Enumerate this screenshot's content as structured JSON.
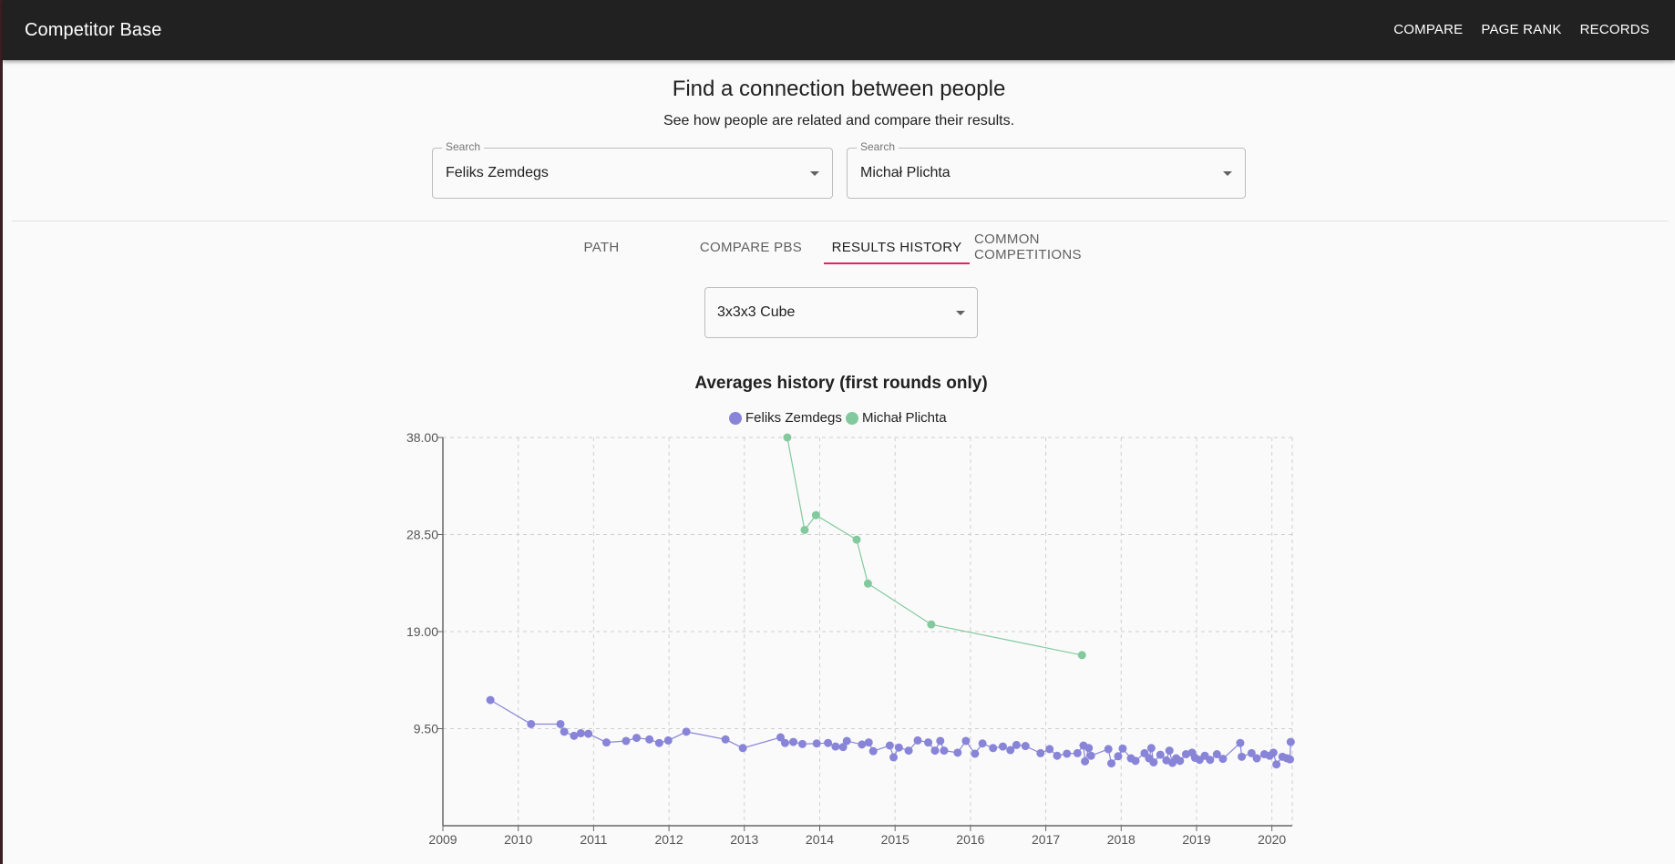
{
  "app": {
    "title": "Competitor Base",
    "nav": [
      "COMPARE",
      "PAGE RANK",
      "RECORDS"
    ]
  },
  "header": {
    "title": "Find a connection between people",
    "subtitle": "See how people are related and compare their results."
  },
  "search": [
    {
      "label": "Search",
      "value": "Feliks Zemdegs"
    },
    {
      "label": "Search",
      "value": "Michał Plichta"
    }
  ],
  "tabs": [
    {
      "label": "PATH",
      "active": false
    },
    {
      "label": "COMPARE PBS",
      "active": false
    },
    {
      "label": "RESULTS HISTORY",
      "active": true
    },
    {
      "label": "COMMON COMPETITIONS",
      "active": false
    }
  ],
  "event_select": {
    "value": "3x3x3 Cube"
  },
  "colors": {
    "accent": "#e91e63",
    "appbar": "#212121",
    "series1": "#8884d8",
    "series2": "#82ca9d"
  },
  "chart_data": {
    "type": "line",
    "title": "Averages history (first rounds only)",
    "legend": "top-center",
    "grid": true,
    "xlabel": "",
    "ylabel": "",
    "xlim": [
      2009,
      2020.27
    ],
    "ylim": [
      0,
      38
    ],
    "x_ticks": [
      "2009",
      "2010",
      "2011",
      "2012",
      "2013",
      "2014",
      "2015",
      "2016",
      "2017",
      "2018",
      "2019",
      "2020"
    ],
    "y_ticks": [
      "9.50",
      "19.00",
      "28.50",
      "38.00"
    ],
    "series": [
      {
        "name": "Feliks Zemdegs",
        "color": "#8884d8",
        "points": [
          [
            2009.63,
            12.3
          ],
          [
            2010.17,
            9.95
          ],
          [
            2010.56,
            9.95
          ],
          [
            2010.61,
            9.2
          ],
          [
            2010.74,
            8.8
          ],
          [
            2010.83,
            9.05
          ],
          [
            2010.93,
            9.0
          ],
          [
            2011.17,
            8.15
          ],
          [
            2011.43,
            8.3
          ],
          [
            2011.57,
            8.6
          ],
          [
            2011.74,
            8.45
          ],
          [
            2011.87,
            8.1
          ],
          [
            2011.99,
            8.35
          ],
          [
            2012.23,
            9.2
          ],
          [
            2012.75,
            8.45
          ],
          [
            2012.98,
            7.6
          ],
          [
            2013.48,
            8.65
          ],
          [
            2013.54,
            8.1
          ],
          [
            2013.65,
            8.2
          ],
          [
            2013.77,
            8.0
          ],
          [
            2013.96,
            8.05
          ],
          [
            2014.11,
            8.1
          ],
          [
            2014.21,
            7.75
          ],
          [
            2014.31,
            7.7
          ],
          [
            2014.36,
            8.3
          ],
          [
            2014.56,
            7.95
          ],
          [
            2014.65,
            8.15
          ],
          [
            2014.71,
            7.3
          ],
          [
            2014.93,
            7.85
          ],
          [
            2014.98,
            6.7
          ],
          [
            2015.05,
            7.65
          ],
          [
            2015.18,
            7.35
          ],
          [
            2015.3,
            8.35
          ],
          [
            2015.44,
            8.15
          ],
          [
            2015.53,
            7.35
          ],
          [
            2015.6,
            8.3
          ],
          [
            2015.65,
            7.35
          ],
          [
            2015.83,
            7.15
          ],
          [
            2015.94,
            8.3
          ],
          [
            2016.06,
            7.05
          ],
          [
            2016.16,
            8.05
          ],
          [
            2016.3,
            7.6
          ],
          [
            2016.43,
            7.75
          ],
          [
            2016.53,
            7.4
          ],
          [
            2016.61,
            7.9
          ],
          [
            2016.73,
            7.8
          ],
          [
            2016.93,
            7.1
          ],
          [
            2017.05,
            7.5
          ],
          [
            2017.15,
            6.85
          ],
          [
            2017.28,
            7.05
          ],
          [
            2017.42,
            7.1
          ],
          [
            2017.5,
            7.85
          ],
          [
            2017.52,
            6.3
          ],
          [
            2017.57,
            7.6
          ],
          [
            2017.6,
            6.85
          ],
          [
            2017.83,
            7.5
          ],
          [
            2017.87,
            6.1
          ],
          [
            2017.96,
            6.8
          ],
          [
            2018.02,
            7.55
          ],
          [
            2018.13,
            6.6
          ],
          [
            2018.19,
            6.35
          ],
          [
            2018.31,
            7.1
          ],
          [
            2018.37,
            6.6
          ],
          [
            2018.4,
            7.6
          ],
          [
            2018.43,
            6.2
          ],
          [
            2018.52,
            6.95
          ],
          [
            2018.6,
            6.4
          ],
          [
            2018.64,
            7.35
          ],
          [
            2018.68,
            6.15
          ],
          [
            2018.73,
            6.6
          ],
          [
            2018.78,
            6.35
          ],
          [
            2018.86,
            7.0
          ],
          [
            2018.94,
            7.15
          ],
          [
            2018.98,
            6.65
          ],
          [
            2019.04,
            6.45
          ],
          [
            2019.11,
            6.85
          ],
          [
            2019.18,
            6.45
          ],
          [
            2019.27,
            7.0
          ],
          [
            2019.35,
            6.55
          ],
          [
            2019.58,
            8.1
          ],
          [
            2019.6,
            6.75
          ],
          [
            2019.73,
            7.1
          ],
          [
            2019.8,
            6.6
          ],
          [
            2019.9,
            7.0
          ],
          [
            2019.97,
            6.85
          ],
          [
            2020.02,
            7.15
          ],
          [
            2020.06,
            6.0
          ],
          [
            2020.14,
            6.75
          ],
          [
            2020.2,
            6.6
          ],
          [
            2020.24,
            6.5
          ],
          [
            2020.25,
            8.2
          ]
        ]
      },
      {
        "name": "Michał Plichta",
        "color": "#82ca9d",
        "points": [
          [
            2013.57,
            38.0
          ],
          [
            2013.8,
            28.95
          ],
          [
            2013.95,
            30.4
          ],
          [
            2014.49,
            28.0
          ],
          [
            2014.64,
            23.7
          ],
          [
            2015.48,
            19.7
          ],
          [
            2017.48,
            16.7
          ]
        ]
      }
    ]
  }
}
